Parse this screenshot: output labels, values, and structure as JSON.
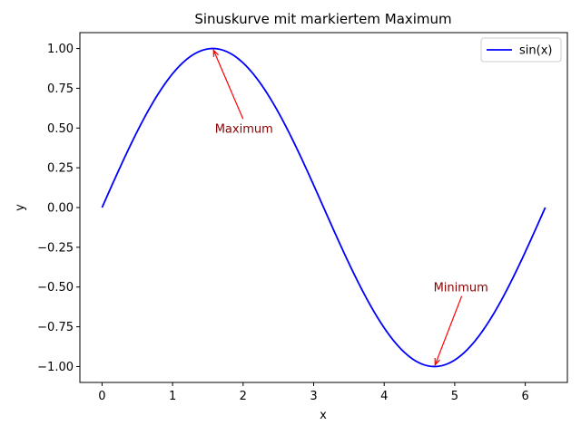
{
  "chart_data": {
    "type": "line",
    "title": "Sinuskurve mit markiertem Maximum",
    "xlabel": "x",
    "ylabel": "y",
    "xlim": [
      -0.314,
      6.597
    ],
    "ylim": [
      -1.1,
      1.1
    ],
    "xticks": [
      0,
      1,
      2,
      3,
      4,
      5,
      6
    ],
    "xtick_labels": [
      "0",
      "1",
      "2",
      "3",
      "4",
      "5",
      "6"
    ],
    "yticks": [
      1.0,
      0.75,
      0.5,
      0.25,
      0.0,
      -0.25,
      -0.5,
      -0.75,
      -1.0
    ],
    "ytick_labels": [
      "1.00",
      "0.75",
      "0.50",
      "0.25",
      "0.00",
      "−0.25",
      "−0.50",
      "−0.75",
      "−1.00"
    ],
    "grid": false,
    "legend": {
      "placement": "top-right"
    },
    "series": [
      {
        "name": "sin(x)",
        "color": "#0000ff",
        "function": "sin",
        "x_range": [
          0,
          6.2832
        ]
      }
    ],
    "annotations": [
      {
        "text": "Maximum",
        "point": [
          1.5708,
          1.0
        ],
        "text_pos": [
          1.6,
          0.5
        ],
        "color": "#8b0000",
        "arrow_color": "#ff0000"
      },
      {
        "text": "Minimum",
        "point": [
          4.7124,
          -1.0
        ],
        "text_pos": [
          4.7,
          -0.5
        ],
        "color": "#8b0000",
        "arrow_color": "#ff0000"
      }
    ]
  }
}
